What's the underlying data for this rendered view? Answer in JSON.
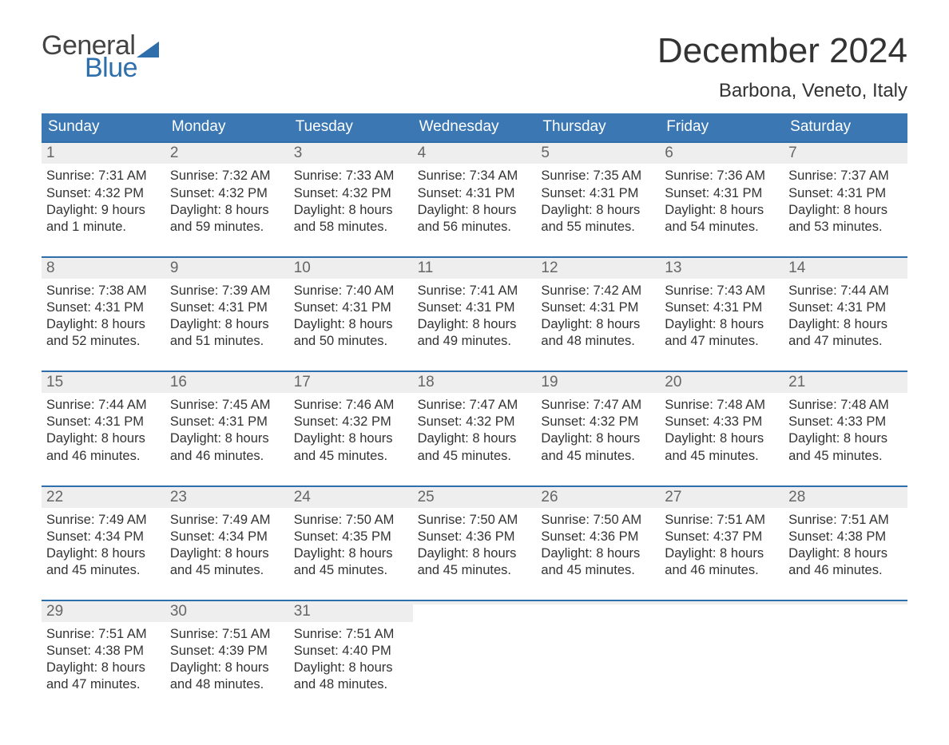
{
  "brand": {
    "word1": "General",
    "word2": "Blue",
    "text_color": "#444444",
    "accent_color": "#2e6fab"
  },
  "title": {
    "month": "December 2024",
    "location": "Barbona, Veneto, Italy"
  },
  "colors": {
    "header_bg": "#3a77b3",
    "header_text": "#ffffff",
    "week_border": "#2e6fab",
    "daynum_bg": "#eeeeee",
    "daynum_text": "#666666",
    "body_text": "#333333",
    "page_bg": "#ffffff"
  },
  "weekdays": [
    "Sunday",
    "Monday",
    "Tuesday",
    "Wednesday",
    "Thursday",
    "Friday",
    "Saturday"
  ],
  "weeks": [
    [
      {
        "num": "1",
        "sunrise": "Sunrise: 7:31 AM",
        "sunset": "Sunset: 4:32 PM",
        "daylight1": "Daylight: 9 hours",
        "daylight2": "and 1 minute."
      },
      {
        "num": "2",
        "sunrise": "Sunrise: 7:32 AM",
        "sunset": "Sunset: 4:32 PM",
        "daylight1": "Daylight: 8 hours",
        "daylight2": "and 59 minutes."
      },
      {
        "num": "3",
        "sunrise": "Sunrise: 7:33 AM",
        "sunset": "Sunset: 4:32 PM",
        "daylight1": "Daylight: 8 hours",
        "daylight2": "and 58 minutes."
      },
      {
        "num": "4",
        "sunrise": "Sunrise: 7:34 AM",
        "sunset": "Sunset: 4:31 PM",
        "daylight1": "Daylight: 8 hours",
        "daylight2": "and 56 minutes."
      },
      {
        "num": "5",
        "sunrise": "Sunrise: 7:35 AM",
        "sunset": "Sunset: 4:31 PM",
        "daylight1": "Daylight: 8 hours",
        "daylight2": "and 55 minutes."
      },
      {
        "num": "6",
        "sunrise": "Sunrise: 7:36 AM",
        "sunset": "Sunset: 4:31 PM",
        "daylight1": "Daylight: 8 hours",
        "daylight2": "and 54 minutes."
      },
      {
        "num": "7",
        "sunrise": "Sunrise: 7:37 AM",
        "sunset": "Sunset: 4:31 PM",
        "daylight1": "Daylight: 8 hours",
        "daylight2": "and 53 minutes."
      }
    ],
    [
      {
        "num": "8",
        "sunrise": "Sunrise: 7:38 AM",
        "sunset": "Sunset: 4:31 PM",
        "daylight1": "Daylight: 8 hours",
        "daylight2": "and 52 minutes."
      },
      {
        "num": "9",
        "sunrise": "Sunrise: 7:39 AM",
        "sunset": "Sunset: 4:31 PM",
        "daylight1": "Daylight: 8 hours",
        "daylight2": "and 51 minutes."
      },
      {
        "num": "10",
        "sunrise": "Sunrise: 7:40 AM",
        "sunset": "Sunset: 4:31 PM",
        "daylight1": "Daylight: 8 hours",
        "daylight2": "and 50 minutes."
      },
      {
        "num": "11",
        "sunrise": "Sunrise: 7:41 AM",
        "sunset": "Sunset: 4:31 PM",
        "daylight1": "Daylight: 8 hours",
        "daylight2": "and 49 minutes."
      },
      {
        "num": "12",
        "sunrise": "Sunrise: 7:42 AM",
        "sunset": "Sunset: 4:31 PM",
        "daylight1": "Daylight: 8 hours",
        "daylight2": "and 48 minutes."
      },
      {
        "num": "13",
        "sunrise": "Sunrise: 7:43 AM",
        "sunset": "Sunset: 4:31 PM",
        "daylight1": "Daylight: 8 hours",
        "daylight2": "and 47 minutes."
      },
      {
        "num": "14",
        "sunrise": "Sunrise: 7:44 AM",
        "sunset": "Sunset: 4:31 PM",
        "daylight1": "Daylight: 8 hours",
        "daylight2": "and 47 minutes."
      }
    ],
    [
      {
        "num": "15",
        "sunrise": "Sunrise: 7:44 AM",
        "sunset": "Sunset: 4:31 PM",
        "daylight1": "Daylight: 8 hours",
        "daylight2": "and 46 minutes."
      },
      {
        "num": "16",
        "sunrise": "Sunrise: 7:45 AM",
        "sunset": "Sunset: 4:31 PM",
        "daylight1": "Daylight: 8 hours",
        "daylight2": "and 46 minutes."
      },
      {
        "num": "17",
        "sunrise": "Sunrise: 7:46 AM",
        "sunset": "Sunset: 4:32 PM",
        "daylight1": "Daylight: 8 hours",
        "daylight2": "and 45 minutes."
      },
      {
        "num": "18",
        "sunrise": "Sunrise: 7:47 AM",
        "sunset": "Sunset: 4:32 PM",
        "daylight1": "Daylight: 8 hours",
        "daylight2": "and 45 minutes."
      },
      {
        "num": "19",
        "sunrise": "Sunrise: 7:47 AM",
        "sunset": "Sunset: 4:32 PM",
        "daylight1": "Daylight: 8 hours",
        "daylight2": "and 45 minutes."
      },
      {
        "num": "20",
        "sunrise": "Sunrise: 7:48 AM",
        "sunset": "Sunset: 4:33 PM",
        "daylight1": "Daylight: 8 hours",
        "daylight2": "and 45 minutes."
      },
      {
        "num": "21",
        "sunrise": "Sunrise: 7:48 AM",
        "sunset": "Sunset: 4:33 PM",
        "daylight1": "Daylight: 8 hours",
        "daylight2": "and 45 minutes."
      }
    ],
    [
      {
        "num": "22",
        "sunrise": "Sunrise: 7:49 AM",
        "sunset": "Sunset: 4:34 PM",
        "daylight1": "Daylight: 8 hours",
        "daylight2": "and 45 minutes."
      },
      {
        "num": "23",
        "sunrise": "Sunrise: 7:49 AM",
        "sunset": "Sunset: 4:34 PM",
        "daylight1": "Daylight: 8 hours",
        "daylight2": "and 45 minutes."
      },
      {
        "num": "24",
        "sunrise": "Sunrise: 7:50 AM",
        "sunset": "Sunset: 4:35 PM",
        "daylight1": "Daylight: 8 hours",
        "daylight2": "and 45 minutes."
      },
      {
        "num": "25",
        "sunrise": "Sunrise: 7:50 AM",
        "sunset": "Sunset: 4:36 PM",
        "daylight1": "Daylight: 8 hours",
        "daylight2": "and 45 minutes."
      },
      {
        "num": "26",
        "sunrise": "Sunrise: 7:50 AM",
        "sunset": "Sunset: 4:36 PM",
        "daylight1": "Daylight: 8 hours",
        "daylight2": "and 45 minutes."
      },
      {
        "num": "27",
        "sunrise": "Sunrise: 7:51 AM",
        "sunset": "Sunset: 4:37 PM",
        "daylight1": "Daylight: 8 hours",
        "daylight2": "and 46 minutes."
      },
      {
        "num": "28",
        "sunrise": "Sunrise: 7:51 AM",
        "sunset": "Sunset: 4:38 PM",
        "daylight1": "Daylight: 8 hours",
        "daylight2": "and 46 minutes."
      }
    ],
    [
      {
        "num": "29",
        "sunrise": "Sunrise: 7:51 AM",
        "sunset": "Sunset: 4:38 PM",
        "daylight1": "Daylight: 8 hours",
        "daylight2": "and 47 minutes."
      },
      {
        "num": "30",
        "sunrise": "Sunrise: 7:51 AM",
        "sunset": "Sunset: 4:39 PM",
        "daylight1": "Daylight: 8 hours",
        "daylight2": "and 48 minutes."
      },
      {
        "num": "31",
        "sunrise": "Sunrise: 7:51 AM",
        "sunset": "Sunset: 4:40 PM",
        "daylight1": "Daylight: 8 hours",
        "daylight2": "and 48 minutes."
      },
      {
        "empty": true
      },
      {
        "empty": true
      },
      {
        "empty": true
      },
      {
        "empty": true
      }
    ]
  ]
}
